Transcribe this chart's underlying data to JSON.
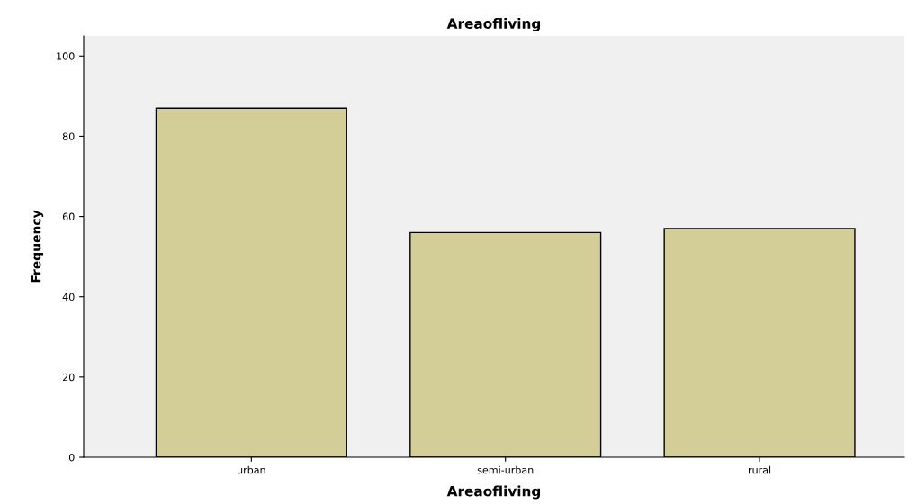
{
  "chart_data": {
    "type": "bar",
    "title": "Areaofliving",
    "xlabel": "Areaofliving",
    "ylabel": "Frequency",
    "categories": [
      "urban",
      "semi-urban",
      "rural"
    ],
    "values": [
      87,
      56,
      57
    ],
    "color": "#d3ce97",
    "ylim": [
      0,
      105
    ],
    "yticks": [
      0,
      20,
      40,
      60,
      80,
      100
    ],
    "grid": false,
    "legend": false
  }
}
